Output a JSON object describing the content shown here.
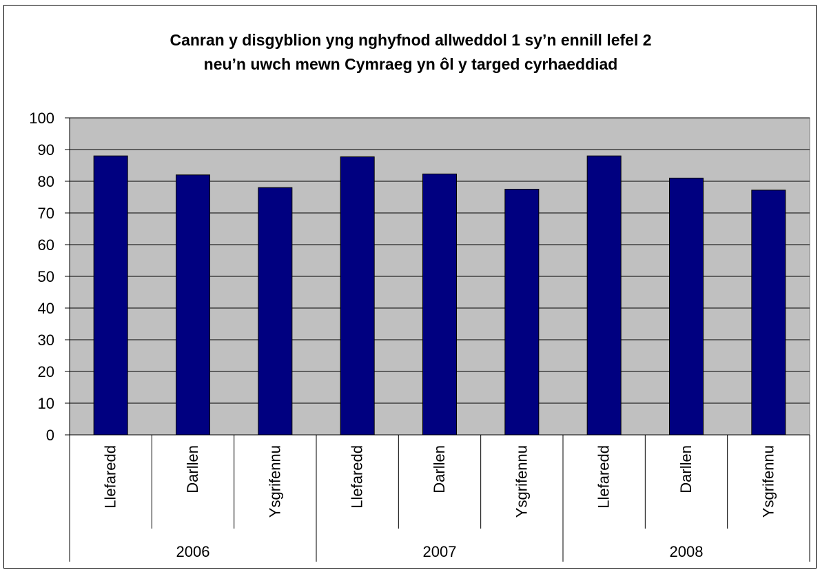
{
  "chart_data": {
    "type": "bar",
    "title_lines": [
      "Canran y disgyblion yng nghyfnod allweddol 1 sy’n ennill lefel 2",
      "neu’n uwch mewn Cymraeg yn ôl y targed cyrhaeddiad"
    ],
    "categories": [
      "Llefaredd",
      "Darllen",
      "Ysgrifennu",
      "Llefaredd",
      "Darllen",
      "Ysgrifennu",
      "Llefaredd",
      "Darllen",
      "Ysgrifennu"
    ],
    "groups": [
      {
        "label": "2006",
        "span": 3
      },
      {
        "label": "2007",
        "span": 3
      },
      {
        "label": "2008",
        "span": 3
      }
    ],
    "values": [
      88,
      82,
      78,
      87.7,
      82.3,
      77.5,
      88,
      81,
      77.2
    ],
    "ylim": [
      0,
      100
    ],
    "yticks": [
      0,
      10,
      20,
      30,
      40,
      50,
      60,
      70,
      80,
      90,
      100
    ],
    "grid": true,
    "colors": {
      "bar": "#000080",
      "plot_bg": "#c0c0c0",
      "axis": "#000000",
      "grid": "#000000"
    }
  }
}
